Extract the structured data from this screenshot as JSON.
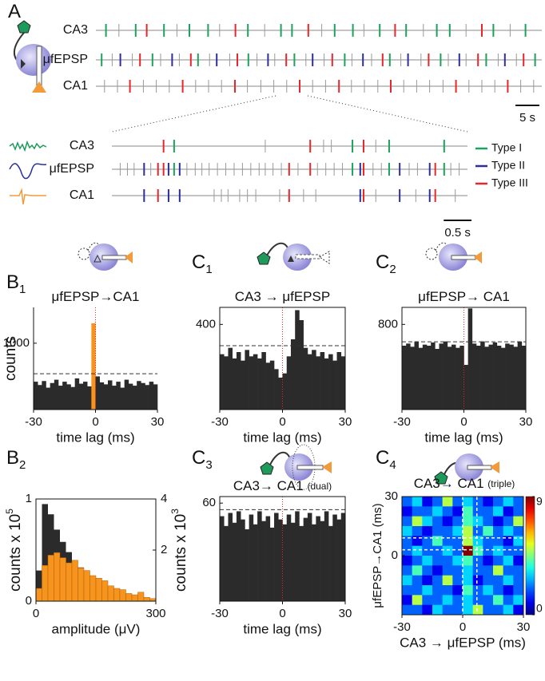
{
  "panels": [
    {
      "letter": "A"
    },
    {
      "letter": "B",
      "sub": "1"
    },
    {
      "letter": "C",
      "sub": "1"
    },
    {
      "letter": "C",
      "sub": "2"
    },
    {
      "letter": "B",
      "sub": "2"
    },
    {
      "letter": "C",
      "sub": "3"
    },
    {
      "letter": "C",
      "sub": "4"
    }
  ],
  "chart_data": [
    {
      "type": "raster",
      "xlim": [
        0,
        93
      ],
      "scalebar": {
        "value": 5,
        "label": "5 s"
      },
      "rows": [
        {
          "name": "CA3",
          "color": "#19a15f",
          "x": [
            2.1,
            4.8,
            8.3,
            10.6,
            14.2,
            16.9,
            19.5,
            23.4,
            25.8,
            29.1,
            31.7,
            35.2,
            38.6,
            40.9,
            44.3,
            47.1,
            49.8,
            53.6,
            55.9,
            59.2,
            62.4,
            64.7,
            68.3,
            71.1,
            73.8,
            77.2,
            80.5,
            82.9,
            86.4,
            89.6
          ],
          "kind": [
            0,
            null,
            0,
            2,
            0,
            null,
            0,
            0,
            null,
            2,
            0,
            null,
            0,
            0,
            2,
            null,
            0,
            0,
            null,
            0,
            2,
            0,
            null,
            0,
            0,
            null,
            2,
            0,
            null,
            0
          ]
        },
        {
          "name": "μfEPSP",
          "color": "#3b3a9a",
          "x": [
            1.2,
            3.4,
            5.1,
            7.6,
            9.2,
            11.8,
            13.5,
            15.9,
            17.4,
            19.8,
            21.3,
            23.7,
            25.2,
            27.9,
            29.5,
            31.8,
            33.6,
            35.9,
            37.3,
            39.7,
            41.4,
            43.8,
            45.2,
            47.6,
            49.3,
            51.9,
            53.4,
            55.7,
            57.5,
            59.8,
            61.3,
            63.6,
            65.1,
            67.8,
            69.4,
            71.9,
            73.5,
            75.8,
            77.2,
            79.7,
            81.4,
            83.9,
            85.3,
            87.7,
            89.2,
            91.6
          ],
          "kind": [
            0,
            null,
            1,
            null,
            2,
            0,
            null,
            1,
            null,
            2,
            0,
            null,
            1,
            null,
            2,
            0,
            null,
            1,
            null,
            2,
            0,
            null,
            1,
            null,
            2,
            0,
            null,
            1,
            null,
            2,
            0,
            null,
            1,
            null,
            2,
            0,
            null,
            1,
            null,
            2,
            0,
            null,
            1,
            null,
            2,
            0
          ]
        },
        {
          "name": "CA1",
          "color": "#f39a3b",
          "x": [
            1.8,
            4.5,
            7.1,
            9.9,
            12.6,
            15.3,
            18.1,
            20.8,
            23.5,
            26.2,
            29.0,
            31.6,
            34.4,
            37.1,
            39.8,
            42.5,
            45.2,
            47.9,
            50.7,
            53.3,
            56.0,
            58.8,
            61.5,
            64.2,
            66.9,
            69.6,
            72.4,
            75.1,
            77.8,
            80.5,
            83.2,
            85.9,
            88.6,
            91.3
          ],
          "kind": [
            null,
            null,
            2,
            null,
            null,
            null,
            2,
            null,
            null,
            null,
            2,
            null,
            null,
            null,
            null,
            2,
            null,
            null,
            2,
            null,
            null,
            null,
            2,
            null,
            null,
            null,
            null,
            2,
            null,
            null,
            null,
            2,
            null,
            null
          ]
        }
      ]
    },
    {
      "type": "raster",
      "xlim": [
        0,
        6.4
      ],
      "scalebar": {
        "value": 0.5,
        "label": "0.5 s"
      },
      "types": [
        {
          "name": "Type I",
          "color": "#1aa35a"
        },
        {
          "name": "Type II",
          "color": "#2b2f9e"
        },
        {
          "name": "Type III",
          "color": "#e8262a"
        }
      ],
      "rows": [
        {
          "name": "CA3",
          "color": "#19a15f",
          "x": [
            0.93,
            1.12,
            2.76,
            3.57,
            3.81,
            3.95,
            4.33,
            4.53,
            4.75,
            4.99,
            5.98
          ],
          "kind": [
            2,
            0,
            null,
            2,
            null,
            null,
            0,
            2,
            null,
            0,
            0
          ]
        },
        {
          "name": "μfEPSP",
          "color": "#3b3a9a",
          "x": [
            0.15,
            0.28,
            0.4,
            0.58,
            0.7,
            0.83,
            0.93,
            1.02,
            1.12,
            1.22,
            1.35,
            1.5,
            1.62,
            1.75,
            1.9,
            2.05,
            2.2,
            2.35,
            2.5,
            2.65,
            2.76,
            2.9,
            3.05,
            3.19,
            3.35,
            3.57,
            3.7,
            3.85,
            4.0,
            4.15,
            4.33,
            4.47,
            4.53,
            4.7,
            4.85,
            4.99,
            5.18,
            5.35,
            5.5,
            5.72,
            5.82,
            5.98,
            6.1,
            6.25
          ],
          "kind": [
            null,
            null,
            null,
            1,
            null,
            2,
            2,
            1,
            0,
            1,
            null,
            null,
            null,
            null,
            null,
            null,
            null,
            null,
            null,
            null,
            null,
            null,
            null,
            2,
            null,
            2,
            null,
            null,
            null,
            null,
            0,
            1,
            2,
            null,
            null,
            0,
            1,
            null,
            null,
            1,
            2,
            0,
            null,
            null
          ]
        },
        {
          "name": "CA1",
          "color": "#f39a3b",
          "x": [
            0.58,
            0.83,
            1.02,
            1.22,
            1.84,
            1.97,
            2.09,
            2.3,
            2.44,
            2.59,
            3.02,
            3.19,
            3.45,
            3.67,
            4.47,
            4.53,
            4.75,
            5.18,
            5.47,
            5.72,
            5.82,
            6.18
          ],
          "kind": [
            1,
            2,
            1,
            1,
            null,
            null,
            null,
            null,
            null,
            null,
            null,
            2,
            null,
            null,
            1,
            2,
            null,
            1,
            null,
            1,
            2,
            null
          ]
        }
      ]
    },
    {
      "type": "histogram",
      "title": "μfEPSP→CA1",
      "xlabel": "time lag (ms)",
      "ylabel": "counts",
      "bins": [
        -30,
        -28,
        -26,
        -24,
        -22,
        -20,
        -18,
        -16,
        -14,
        -12,
        -10,
        -8,
        -6,
        -4,
        -2,
        0,
        2,
        4,
        6,
        8,
        10,
        12,
        14,
        16,
        18,
        20,
        22,
        24,
        26,
        28,
        30
      ],
      "values": [
        420,
        370,
        430,
        330,
        400,
        450,
        360,
        420,
        380,
        340,
        470,
        390,
        420,
        350,
        1300,
        500,
        410,
        380,
        440,
        360,
        420,
        330,
        450,
        390,
        360,
        430,
        400,
        370,
        420,
        380
      ],
      "colors": [
        "#2b2b2b",
        "#2b2b2b",
        "#2b2b2b",
        "#2b2b2b",
        "#2b2b2b",
        "#2b2b2b",
        "#2b2b2b",
        "#2b2b2b",
        "#2b2b2b",
        "#2b2b2b",
        "#2b2b2b",
        "#2b2b2b",
        "#2b2b2b",
        "#2b2b2b",
        "#f7941d",
        "#2b2b2b",
        "#2b2b2b",
        "#2b2b2b",
        "#2b2b2b",
        "#2b2b2b",
        "#2b2b2b",
        "#2b2b2b",
        "#2b2b2b",
        "#2b2b2b",
        "#2b2b2b",
        "#2b2b2b",
        "#2b2b2b",
        "#2b2b2b",
        "#2b2b2b",
        "#2b2b2b"
      ],
      "threshold": 540,
      "vline": 0,
      "xlim": [
        -30,
        30
      ],
      "xticks": [
        -30,
        0,
        30
      ],
      "ylim": [
        0,
        1540
      ],
      "yticks": [
        1000
      ],
      "frame": false
    },
    {
      "type": "histogram",
      "title": "CA3 → μfEPSP",
      "xlabel": "time lag (ms)",
      "bins": [
        -30,
        -28,
        -26,
        -24,
        -22,
        -20,
        -18,
        -16,
        -14,
        -12,
        -10,
        -8,
        -6,
        -4,
        -2,
        0,
        2,
        4,
        6,
        8,
        10,
        12,
        14,
        16,
        18,
        20,
        22,
        24,
        26,
        28,
        30
      ],
      "values": [
        260,
        250,
        290,
        240,
        270,
        230,
        280,
        250,
        260,
        240,
        270,
        220,
        230,
        190,
        150,
        170,
        250,
        330,
        467,
        420,
        290,
        260,
        280,
        250,
        270,
        240,
        260,
        230,
        270,
        250
      ],
      "color": "#2b2b2b",
      "threshold": 300,
      "vline": 0,
      "xlim": [
        -30,
        30
      ],
      "xticks": [
        -30,
        0,
        30
      ],
      "ylim": [
        0,
        480
      ],
      "yticks": [
        400
      ],
      "frame": true
    },
    {
      "type": "histogram",
      "title": "μfEPSP→ CA1",
      "xlabel": "time lag (ms)",
      "bins": [
        -30,
        -28,
        -26,
        -24,
        -22,
        -20,
        -18,
        -16,
        -14,
        -12,
        -10,
        -8,
        -6,
        -4,
        -2,
        0,
        2,
        4,
        6,
        8,
        10,
        12,
        14,
        16,
        18,
        20,
        22,
        24,
        26,
        28,
        30
      ],
      "values": [
        600,
        620,
        590,
        640,
        580,
        610,
        600,
        630,
        570,
        620,
        640,
        590,
        610,
        580,
        600,
        420,
        950,
        620,
        600,
        640,
        590,
        610,
        630,
        600,
        580,
        620,
        610,
        590,
        640,
        600
      ],
      "color": "#2b2b2b",
      "threshold": 637,
      "vline": 0,
      "xlim": [
        -30,
        30
      ],
      "xticks": [
        -30,
        0,
        30
      ],
      "ylim": [
        0,
        960
      ],
      "yticks": [
        800
      ],
      "frame": true
    },
    {
      "type": "histogram",
      "title": "CA3→ CA1",
      "title_note": "(dual)",
      "xlabel": "time lag (ms)",
      "bins": [
        -30,
        -28,
        -26,
        -24,
        -22,
        -20,
        -18,
        -16,
        -14,
        -12,
        -10,
        -8,
        -6,
        -4,
        -2,
        0,
        2,
        4,
        6,
        8,
        10,
        12,
        14,
        16,
        18,
        20,
        22,
        24,
        26,
        28,
        30
      ],
      "values": [
        52,
        46,
        54,
        48,
        55,
        50,
        44,
        53,
        47,
        55,
        49,
        52,
        45,
        54,
        50,
        47,
        53,
        48,
        55,
        46,
        51,
        54,
        47,
        52,
        49,
        55,
        46,
        53,
        50,
        54
      ],
      "color": "#2b2b2b",
      "threshold": 56,
      "vline": 0,
      "xlim": [
        -30,
        30
      ],
      "xticks": [
        -30,
        0,
        30
      ],
      "ylim": [
        0,
        64
      ],
      "yticks": [
        60
      ],
      "frame": true
    },
    {
      "type": "histogram2",
      "xlabel": "amplitude (μV)",
      "ylabel": "counts x 10",
      "ylabel_exp": "5",
      "y2label": "counts x 10",
      "y2label_exp": "3",
      "bins": [
        0,
        15,
        30,
        45,
        60,
        75,
        90,
        105,
        120,
        135,
        150,
        165,
        180,
        195,
        210,
        225,
        240,
        255,
        270,
        285,
        300
      ],
      "series": [
        {
          "color": "#2b2b2b",
          "values": [
            0.3,
            0.95,
            0.85,
            0.7,
            0.58,
            0.48,
            0.4,
            0.33,
            0.27,
            0.21,
            0.16,
            0.12,
            0.09,
            0.06,
            0.04,
            0.03,
            0.02,
            0.01,
            0.005,
            0.002
          ]
        },
        {
          "color": "#f7941d",
          "axis": "y2",
          "values": [
            0.5,
            1.4,
            1.8,
            1.9,
            1.7,
            1.5,
            1.6,
            1.3,
            1.2,
            1.0,
            0.9,
            0.8,
            0.6,
            0.5,
            0.45,
            0.3,
            0.25,
            0.35,
            0.15,
            0.1
          ]
        }
      ],
      "xlim": [
        0,
        300
      ],
      "xticks": [
        0,
        300
      ],
      "ylim": [
        0,
        1
      ],
      "yticks": [
        0,
        1
      ],
      "y2lim": [
        0,
        4
      ],
      "y2ticks": [
        2,
        4
      ]
    },
    {
      "type": "heatmap",
      "title": "CA3→ CA1",
      "title_note": "(triple)",
      "xlabel": "CA3 → μfEPSP (ms)",
      "ylabel": "μfEPSP→CA1 (ms)",
      "xlim": [
        -30,
        30
      ],
      "ylim": [
        -30,
        30
      ],
      "xticks": [
        -30,
        0,
        30
      ],
      "yticks": [
        0,
        30
      ],
      "zlim": [
        0,
        9
      ],
      "zticks": [
        0,
        9
      ],
      "guides": {
        "x": [
          0,
          7
        ],
        "y": [
          3,
          9
        ]
      },
      "values": [
        [
          2,
          3,
          1,
          2,
          5,
          2,
          3,
          2,
          1,
          2,
          3,
          2
        ],
        [
          1,
          2,
          2,
          3,
          2,
          1,
          4,
          2,
          2,
          3,
          1,
          2
        ],
        [
          2,
          5,
          3,
          2,
          1,
          2,
          4,
          3,
          2,
          1,
          2,
          5
        ],
        [
          3,
          2,
          1,
          2,
          2,
          3,
          5,
          2,
          4,
          2,
          3,
          2
        ],
        [
          2,
          1,
          2,
          4,
          2,
          2,
          5,
          3,
          2,
          2,
          1,
          3
        ],
        [
          2,
          3,
          2,
          2,
          3,
          2,
          9,
          4,
          2,
          3,
          2,
          2
        ],
        [
          1,
          2,
          3,
          2,
          2,
          3,
          4,
          2,
          1,
          2,
          3,
          1
        ],
        [
          2,
          4,
          2,
          1,
          2,
          2,
          3,
          2,
          2,
          5,
          2,
          2
        ],
        [
          3,
          2,
          1,
          2,
          5,
          2,
          3,
          1,
          2,
          2,
          3,
          2
        ],
        [
          2,
          2,
          3,
          2,
          2,
          1,
          4,
          2,
          3,
          2,
          1,
          2
        ],
        [
          1,
          5,
          2,
          2,
          3,
          2,
          3,
          2,
          2,
          4,
          2,
          3
        ],
        [
          2,
          2,
          1,
          3,
          2,
          2,
          3,
          5,
          2,
          2,
          3,
          1
        ]
      ]
    }
  ]
}
